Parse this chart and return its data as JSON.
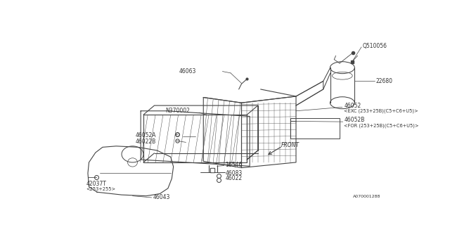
{
  "bg_color": "#ffffff",
  "lc": "#444444",
  "tc": "#333333",
  "fs": 5.5,
  "fs_small": 4.8,
  "part_number": "A070001288",
  "exc_note": "<EXC (253+25B)(C5+C6+U5)>",
  "for_note": "<FOR (253+25B)(C5+C6+U5)>"
}
